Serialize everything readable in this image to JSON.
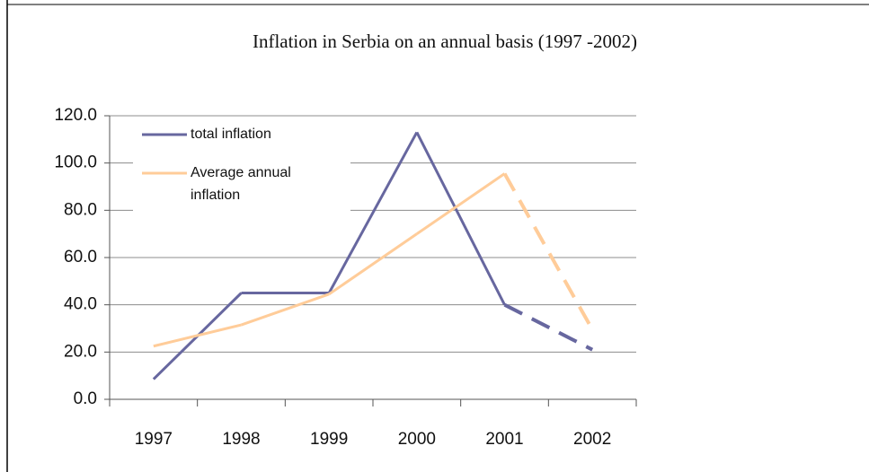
{
  "chart_data": {
    "type": "line",
    "title": "Inflation in Serbia on an annual basis (1997 -2002)",
    "categories": [
      "1997",
      "1998",
      "1999",
      "2000",
      "2001",
      "2002"
    ],
    "series": [
      {
        "name": "total inflation",
        "color": "#67679f",
        "values": [
          8.5,
          45,
          45,
          113,
          40,
          21
        ],
        "segment_styles": [
          "solid",
          "solid",
          "solid",
          "solid",
          "dashed"
        ]
      },
      {
        "name": "Average annual inflation",
        "color": "#ffcc99",
        "values": [
          22.5,
          31.5,
          44.5,
          70,
          95.5,
          29.5
        ],
        "segment_styles": [
          "solid",
          "solid",
          "solid",
          "solid",
          "dashed"
        ]
      }
    ],
    "ylim": [
      0,
      120
    ],
    "yticks": [
      {
        "value": 0,
        "label": "0.0"
      },
      {
        "value": 20,
        "label": "20.0"
      },
      {
        "value": 40,
        "label": "40.0"
      },
      {
        "value": 60,
        "label": "60.0"
      },
      {
        "value": 80,
        "label": "80.0"
      },
      {
        "value": 100,
        "label": "100.0"
      },
      {
        "value": 120,
        "label": "120.0"
      }
    ],
    "grid": true,
    "legend": "upper left"
  }
}
